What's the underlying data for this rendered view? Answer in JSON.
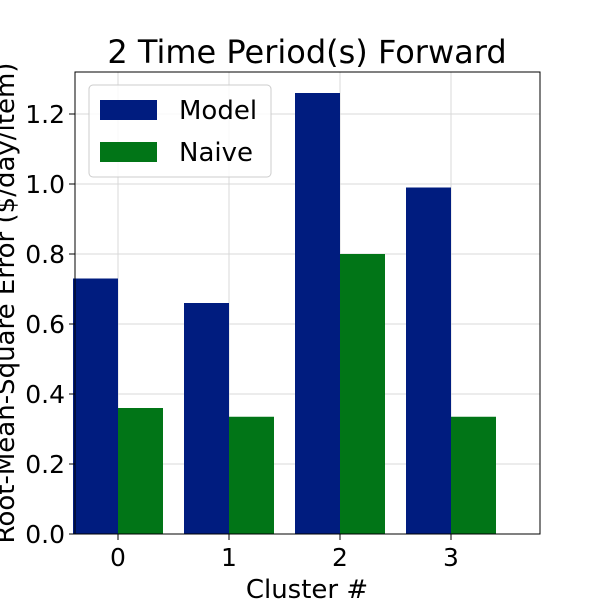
{
  "chart_data": {
    "type": "bar",
    "title": "2 Time Period(s) Forward",
    "xlabel": "Cluster #",
    "ylabel": "Root-Mean-Square Error ($/day/item)",
    "categories": [
      "0",
      "1",
      "2",
      "3"
    ],
    "series": [
      {
        "name": "Model",
        "color": "#001c7f",
        "values": [
          0.73,
          0.66,
          1.26,
          0.99
        ]
      },
      {
        "name": "Naive",
        "color": "#017517",
        "values": [
          0.36,
          0.335,
          0.8,
          0.335
        ]
      }
    ],
    "ylim": [
      0,
      1.32
    ],
    "yticks": [
      "0.0",
      "0.2",
      "0.4",
      "0.6",
      "0.8",
      "1.0",
      "1.2"
    ],
    "grid": true,
    "legend": "top-left"
  }
}
